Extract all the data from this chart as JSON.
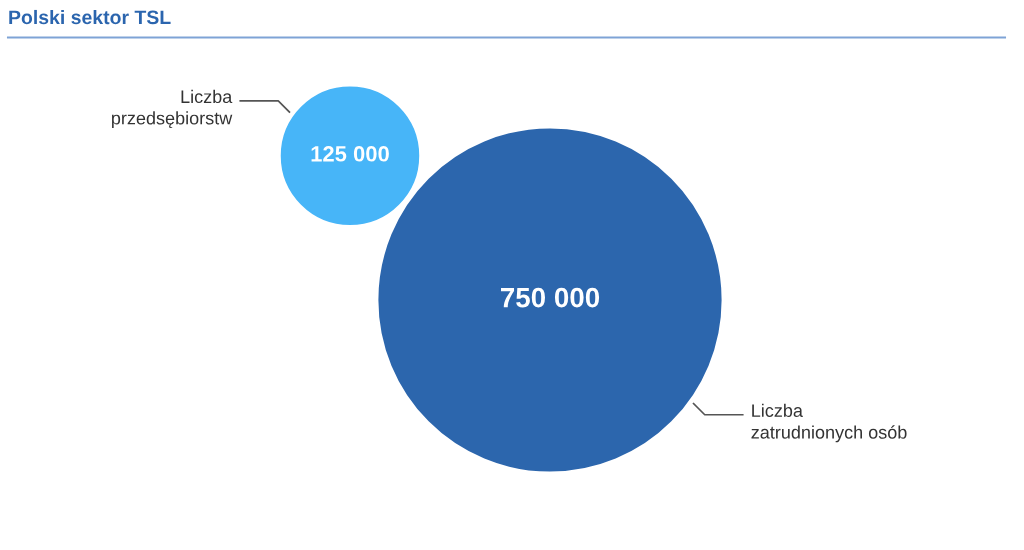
{
  "chart_data": {
    "type": "other",
    "title": "Polski sektor TSL",
    "categories": [
      "Liczba\nprzedsębiorstw",
      "Liczba\nzatrudnionych osób"
    ],
    "values": [
      125000,
      750000
    ],
    "colors": [
      "#47b5f8",
      "#2c66ad"
    ],
    "value_labels": [
      "125 000",
      "750 000"
    ]
  }
}
